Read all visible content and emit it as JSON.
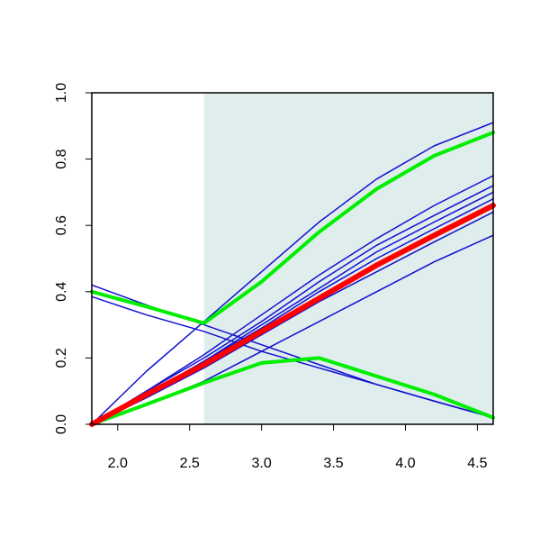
{
  "chart_data": {
    "type": "line",
    "x": [
      1.82,
      2.2,
      2.6,
      3.0,
      3.4,
      3.8,
      4.2,
      4.61
    ],
    "xlim": [
      1.82,
      4.61
    ],
    "ylim": [
      0,
      1
    ],
    "xticks": [
      {
        "value": 2,
        "label": "2.0"
      },
      2.5,
      {
        "value": 3,
        "label": "3.0"
      },
      3.5,
      {
        "value": 4,
        "label": "4.0"
      },
      4.5
    ],
    "yticks": [
      {
        "value": 0,
        "label": "0.0"
      },
      0.2,
      0.4,
      0.6,
      0.8,
      {
        "value": 1,
        "label": "1.0"
      }
    ],
    "shade": {
      "xrange": [
        2.6,
        4.61
      ],
      "color": "#e0eded"
    },
    "series": [
      {
        "color": "#1010d0",
        "width": 1.5,
        "values": [
          0,
          0.16,
          0.31,
          0.46,
          0.61,
          0.74,
          0.84,
          0.91
        ]
      },
      {
        "color": "#1010d0",
        "width": 1.5,
        "values": [
          0,
          0.1,
          0.21,
          0.33,
          0.45,
          0.56,
          0.66,
          0.75
        ]
      },
      {
        "color": "#1010d0",
        "width": 1.5,
        "values": [
          0,
          0.1,
          0.2,
          0.31,
          0.43,
          0.54,
          0.63,
          0.72
        ]
      },
      {
        "color": "#1010d0",
        "width": 1.5,
        "values": [
          0,
          0.09,
          0.19,
          0.3,
          0.41,
          0.52,
          0.61,
          0.7
        ]
      },
      {
        "color": "#1010d0",
        "width": 1.5,
        "values": [
          0,
          0.09,
          0.19,
          0.29,
          0.4,
          0.5,
          0.59,
          0.68
        ]
      },
      {
        "color": "#1010d0",
        "width": 1.5,
        "values": [
          0,
          0.08,
          0.17,
          0.27,
          0.37,
          0.46,
          0.55,
          0.64
        ]
      },
      {
        "color": "#1010d0",
        "width": 1.5,
        "values": [
          0,
          0.06,
          0.13,
          0.22,
          0.31,
          0.4,
          0.49,
          0.57
        ]
      },
      {
        "color": "#1010d0",
        "width": 1.5,
        "values": [
          0.42,
          0.36,
          0.3,
          0.24,
          0.18,
          0.12,
          0.07,
          0.02
        ]
      },
      {
        "color": "#1010d0",
        "width": 1.5,
        "values": [
          0.385,
          0.33,
          0.28,
          0.22,
          0.17,
          0.12,
          0.07,
          0.02
        ]
      },
      {
        "color": "#00ee00",
        "width": 4,
        "values": [
          0.4,
          0.355,
          0.305,
          0.43,
          0.58,
          0.71,
          0.81,
          0.88
        ]
      },
      {
        "color": "#00ee00",
        "width": 4,
        "values": [
          0,
          0.06,
          0.125,
          0.185,
          0.2,
          0.145,
          0.09,
          0.02
        ]
      },
      {
        "color": "#ff0000",
        "width": 6,
        "values": [
          0,
          0.09,
          0.18,
          0.28,
          0.38,
          0.48,
          0.57,
          0.66
        ]
      }
    ]
  }
}
